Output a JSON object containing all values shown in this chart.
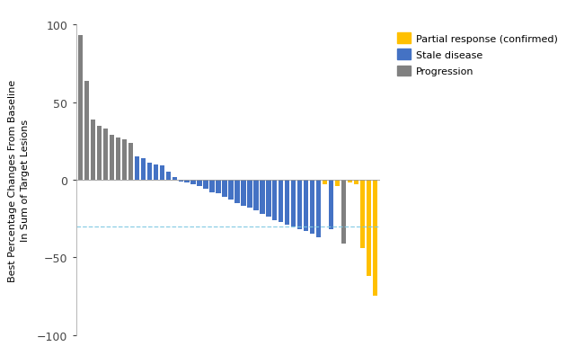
{
  "waterfall_data": [
    [
      93,
      "gray"
    ],
    [
      64,
      "gray"
    ],
    [
      39,
      "gray"
    ],
    [
      35,
      "gray"
    ],
    [
      33,
      "gray"
    ],
    [
      29,
      "gray"
    ],
    [
      27,
      "gray"
    ],
    [
      26,
      "gray"
    ],
    [
      24,
      "gray"
    ],
    [
      15,
      "blue"
    ],
    [
      14,
      "blue"
    ],
    [
      11,
      "blue"
    ],
    [
      10,
      "blue"
    ],
    [
      9,
      "blue"
    ],
    [
      5,
      "blue"
    ],
    [
      2,
      "blue"
    ],
    [
      -1,
      "blue"
    ],
    [
      -2,
      "blue"
    ],
    [
      -3,
      "blue"
    ],
    [
      -4,
      "blue"
    ],
    [
      -6,
      "blue"
    ],
    [
      -8,
      "blue"
    ],
    [
      -9,
      "blue"
    ],
    [
      -11,
      "blue"
    ],
    [
      -13,
      "blue"
    ],
    [
      -15,
      "blue"
    ],
    [
      -17,
      "blue"
    ],
    [
      -18,
      "blue"
    ],
    [
      -20,
      "blue"
    ],
    [
      -22,
      "blue"
    ],
    [
      -24,
      "blue"
    ],
    [
      -26,
      "blue"
    ],
    [
      -27,
      "blue"
    ],
    [
      -29,
      "blue"
    ],
    [
      -30,
      "blue"
    ],
    [
      -32,
      "blue"
    ],
    [
      -33,
      "blue"
    ],
    [
      -35,
      "blue"
    ],
    [
      -37,
      "blue"
    ],
    [
      -3,
      "yellow"
    ],
    [
      -32,
      "blue"
    ],
    [
      -4,
      "yellow"
    ],
    [
      -41,
      "gray"
    ],
    [
      -2,
      "yellow"
    ],
    [
      -3,
      "yellow"
    ],
    [
      -44,
      "yellow"
    ],
    [
      -62,
      "yellow"
    ],
    [
      -75,
      "yellow"
    ]
  ],
  "bar_colors": {
    "gray": "#808080",
    "blue": "#4472C4",
    "yellow": "#FFC000"
  },
  "dashed_line_y": -30,
  "ylabel": "Best Percentage Changes From Baseline\nIn Sum of Target Lesions",
  "ylim": [
    -100,
    100
  ],
  "yticks": [
    -100,
    -50,
    0,
    50,
    100
  ],
  "legend_labels": [
    "Partial response (confirmed)",
    "Stale disease",
    "Progression"
  ],
  "legend_colors": [
    "#FFC000",
    "#4472C4",
    "#808080"
  ],
  "dashed_line_color": "#7EC8E3",
  "background_color": "#ffffff",
  "figsize": [
    6.5,
    4.06
  ],
  "dpi": 100
}
